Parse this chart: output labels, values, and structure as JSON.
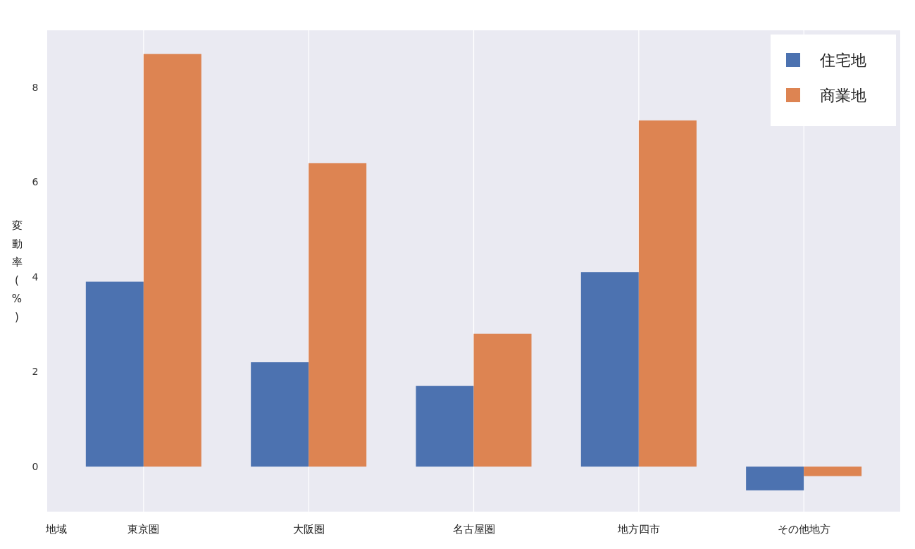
{
  "chart_data": {
    "type": "bar",
    "xlabel": "地域",
    "ylabel": "変動率(%)",
    "categories": [
      "東京圏",
      "大阪圏",
      "名古屋圏",
      "地方四市",
      "その他地方"
    ],
    "series": [
      {
        "name": "住宅地",
        "color": "#4c72b0",
        "values": [
          3.9,
          2.2,
          1.7,
          4.1,
          -0.5
        ]
      },
      {
        "name": "商業地",
        "color": "#dd8452",
        "values": [
          8.7,
          6.4,
          2.8,
          7.3,
          -0.2
        ]
      }
    ],
    "ylim": [
      -0.95,
      9.2
    ],
    "yticks": [
      0,
      2,
      4,
      6,
      8
    ],
    "grid": "x",
    "legend": "top right"
  }
}
